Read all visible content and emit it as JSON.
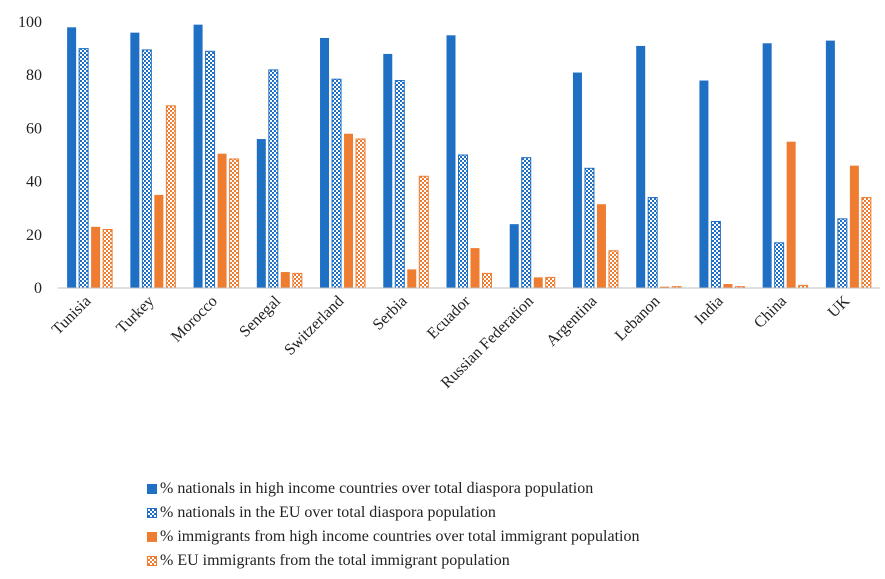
{
  "colors": {
    "blue": "#1f6fc5",
    "orange": "#ef7d31",
    "axis": "#bfbfbf",
    "text": "#222222"
  },
  "chart_data": {
    "type": "bar",
    "title": "",
    "xlabel": "",
    "ylabel": "",
    "ylim": [
      0,
      100
    ],
    "yticks": [
      0,
      20,
      40,
      60,
      80,
      100
    ],
    "grid": false,
    "legend_position": "bottom",
    "categories": [
      "Tunisia",
      "Turkey",
      "Morocco",
      "Senegal",
      "Switzerland",
      "Serbia",
      "Ecuador",
      "Russian Federation",
      "Argentina",
      "Lebanon",
      "India",
      "China",
      "UK"
    ],
    "series": [
      {
        "name": "% nationals in high income countries over total diaspora population",
        "pattern": "solid",
        "color": "#1f6fc5",
        "values": [
          98,
          96,
          99,
          56,
          94,
          88,
          95,
          24,
          81,
          91,
          78,
          92,
          93
        ]
      },
      {
        "name": "% nationals in the EU over total diaspora population",
        "pattern": "checker",
        "color": "#1f6fc5",
        "values": [
          90,
          89.5,
          89,
          82,
          78.5,
          78,
          50,
          49,
          45,
          34,
          25,
          17,
          26
        ]
      },
      {
        "name": "% immigrants from high income countries over total immigrant population",
        "pattern": "solid",
        "color": "#ef7d31",
        "values": [
          23,
          35,
          50.5,
          6,
          58,
          7,
          15,
          4,
          31.5,
          0.5,
          1.5,
          55,
          46
        ]
      },
      {
        "name": "% EU immigrants from the total immigrant population",
        "pattern": "checker",
        "color": "#ef7d31",
        "values": [
          22,
          68.5,
          48.5,
          5.5,
          56,
          42,
          5.5,
          4,
          14,
          0.5,
          0.5,
          1,
          34
        ]
      }
    ]
  }
}
